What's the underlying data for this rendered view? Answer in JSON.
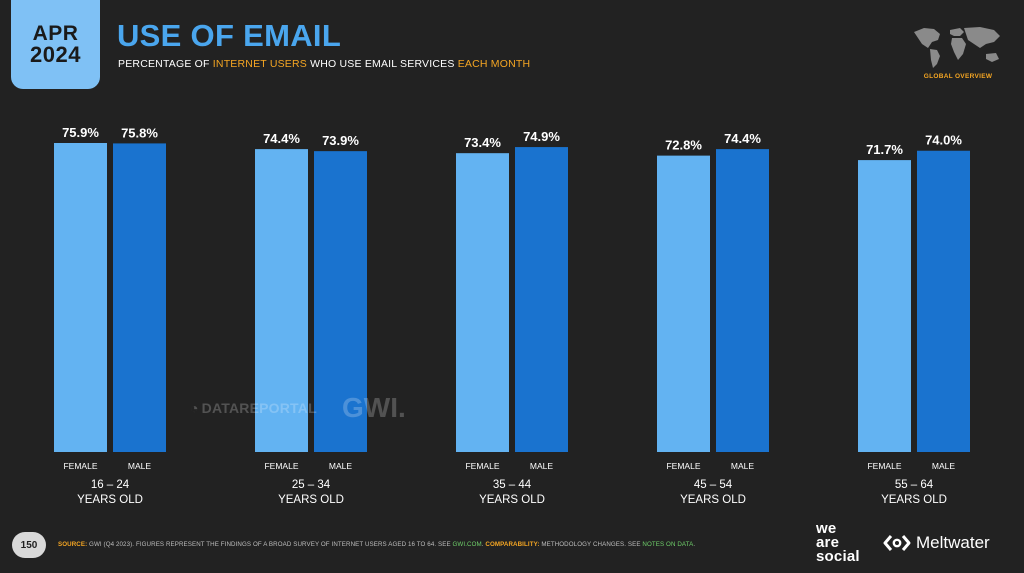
{
  "header": {
    "month": "APR",
    "year": "2024",
    "title": "USE OF EMAIL",
    "subtitle_parts": [
      "PERCENTAGE OF ",
      "INTERNET USERS",
      " WHO USE EMAIL SERVICES ",
      "EACH MONTH"
    ],
    "global_label": "GLOBAL OVERVIEW"
  },
  "watermarks": {
    "datareportal": "DATAREPORTAL",
    "gwi": "GWI."
  },
  "footer": {
    "page": "150",
    "source_label": "SOURCE:",
    "source_text": " GWI (Q4 2023). FIGURES REPRESENT THE FINDINGS OF A BROAD SURVEY OF INTERNET USERS AGED 16 TO 64. SEE ",
    "source_link": "GWI.COM",
    "comparability_label": "COMPARABILITY:",
    "comparability_text": " METHODOLOGY CHANGES. SEE ",
    "notes_link": "NOTES ON DATA",
    "end": "."
  },
  "logos": {
    "was_line1": "we",
    "was_line2": "are",
    "was_line3": "social",
    "meltwater": "Meltwater"
  },
  "colors": {
    "female": "#63b3f2",
    "male": "#1a73cf",
    "title": "#4aa6ee",
    "accent": "#f5a623",
    "background": "#222222"
  },
  "chart_data": {
    "type": "bar",
    "unit": "%",
    "ylim": [
      0,
      100
    ],
    "series_labels": [
      "FEMALE",
      "MALE"
    ],
    "groups": [
      {
        "range": "16 – 24",
        "label": "YEARS OLD",
        "female": 75.9,
        "male": 75.8
      },
      {
        "range": "25 – 34",
        "label": "YEARS OLD",
        "female": 74.4,
        "male": 73.9
      },
      {
        "range": "35 – 44",
        "label": "YEARS OLD",
        "female": 73.4,
        "male": 74.9
      },
      {
        "range": "45 – 54",
        "label": "YEARS OLD",
        "female": 72.8,
        "male": 74.4
      },
      {
        "range": "55 – 64",
        "label": "YEARS OLD",
        "female": 71.7,
        "male": 74.0
      }
    ]
  }
}
